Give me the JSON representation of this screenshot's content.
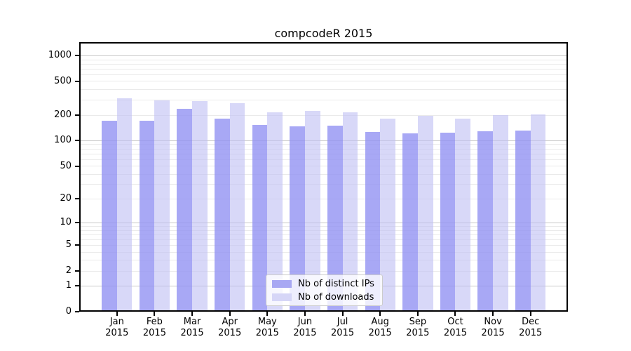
{
  "chart_data": {
    "type": "bar",
    "title": "compcodeR 2015",
    "categories": [
      "Jan 2015",
      "Feb 2015",
      "Mar 2015",
      "Apr 2015",
      "May 2015",
      "Jun 2015",
      "Jul 2015",
      "Aug 2015",
      "Sep 2015",
      "Oct 2015",
      "Nov 2015",
      "Dec 2015"
    ],
    "series": [
      {
        "name": "Nb of distinct IPs",
        "values": [
          172,
          172,
          238,
          184,
          154,
          148,
          150,
          127,
          122,
          125,
          129,
          132
        ],
        "fill": "rgba(146,146,243,0.8)",
        "legend_color": "#a8a8f3"
      },
      {
        "name": "Nb of downloads",
        "values": [
          318,
          300,
          296,
          278,
          216,
          224,
          218,
          184,
          196,
          183,
          201,
          204
        ],
        "fill": "rgba(190,190,243,0.6)",
        "legend_color": "#d6d6f7"
      }
    ],
    "xlabel": "",
    "ylabel": "",
    "y_axis": {
      "scale": "log10(1+x)",
      "ticks": [
        0,
        1,
        2,
        5,
        10,
        20,
        50,
        100,
        200,
        500,
        1000
      ],
      "top_value": 1450
    },
    "grid": {
      "on": true,
      "major_lines": [
        1,
        10,
        100,
        1000
      ],
      "minor_lines": [
        2,
        3,
        4,
        5,
        6,
        7,
        8,
        9,
        20,
        30,
        40,
        50,
        60,
        70,
        80,
        90,
        200,
        300,
        400,
        500,
        600,
        700,
        800,
        900
      ],
      "major_color": "#c9c9c9",
      "minor_color": "#eaeaea"
    },
    "legend": {
      "position": "inside-bottom-center"
    },
    "frame_color": "#000000",
    "background_color": "#ffffff"
  }
}
